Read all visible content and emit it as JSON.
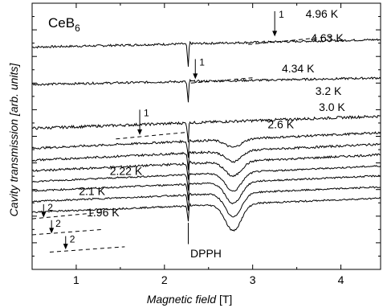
{
  "chart_data": {
    "type": "line",
    "title": "CeB",
    "title_subscript": "6",
    "xlabel_main": "Magnetic field",
    "xlabel_unit": "[T]",
    "ylabel_main": "Cavity transmission",
    "ylabel_unit": "[arb. units]",
    "xlim": [
      0.5,
      4.45
    ],
    "ylim": [
      0,
      1
    ],
    "x_ticks": [
      1,
      2,
      3,
      4
    ],
    "x_tick_labels": [
      "1",
      "2",
      "3",
      "4"
    ],
    "y_ticks_visible_labels": false,
    "grid": false,
    "legend": "none",
    "dpph_position": 2.27,
    "dpph_label": "DPPH",
    "series": [
      {
        "name": "4.96 K",
        "label_x": 3.6,
        "label_y": 0.945,
        "base": 0.835,
        "slope": 0.028,
        "dip1": 0.07,
        "dip2": 0.0,
        "noise": 0.004
      },
      {
        "name": "4.63 K",
        "label_x": 3.66,
        "label_y": 0.855,
        "base": 0.695,
        "slope": 0.024,
        "dip1": 0.06,
        "dip2": 0.0,
        "noise": 0.004
      },
      {
        "name": "4.34 K",
        "label_x": 3.33,
        "label_y": 0.74,
        "base": 0.53,
        "slope": 0.045,
        "dip1": 0.05,
        "dip2": 0.0,
        "noise": 0.005
      },
      {
        "name": "3.2 K",
        "label_x": 3.71,
        "label_y": 0.655,
        "base": 0.455,
        "slope": 0.058,
        "dip1": 0.04,
        "dip2": 0.03,
        "noise": 0.004
      },
      {
        "name": "3.0 K",
        "label_x": 3.75,
        "label_y": 0.595,
        "base": 0.41,
        "slope": 0.06,
        "dip1": 0.04,
        "dip2": 0.04,
        "noise": 0.004
      },
      {
        "name": "2.6 K",
        "label_x": 3.17,
        "label_y": 0.53,
        "base": 0.37,
        "slope": 0.06,
        "dip1": 0.04,
        "dip2": 0.055,
        "noise": 0.004
      },
      {
        "name": "",
        "label_x": 0,
        "label_y": 0,
        "base": 0.33,
        "slope": 0.058,
        "dip1": 0.04,
        "dip2": 0.07,
        "noise": 0.003
      },
      {
        "name": "2.22 K",
        "label_x": 1.38,
        "label_y": 0.355,
        "base": 0.295,
        "slope": 0.056,
        "dip1": 0.04,
        "dip2": 0.08,
        "noise": 0.003
      },
      {
        "name": "2.1 K",
        "label_x": 1.03,
        "label_y": 0.28,
        "base": 0.255,
        "slope": 0.054,
        "dip1": 0.04,
        "dip2": 0.09,
        "noise": 0.003
      },
      {
        "name": "1.96 K",
        "label_x": 1.12,
        "label_y": 0.2,
        "base": 0.215,
        "slope": 0.052,
        "dip1": 0.04,
        "dip2": 0.1,
        "noise": 0.003
      }
    ],
    "markers": [
      {
        "label": "1",
        "x": 3.25,
        "y_arrow_top": 0.97,
        "y_arrow_tip": 0.875,
        "dash_from": 2.95,
        "dash_to": 3.9,
        "dash_y_from": 0.845,
        "dash_y_to": 0.875
      },
      {
        "label": "1",
        "x": 2.35,
        "y_arrow_top": 0.79,
        "y_arrow_tip": 0.715,
        "dash_from": 2.3,
        "dash_to": 3.0,
        "dash_y_from": 0.7,
        "dash_y_to": 0.72
      },
      {
        "label": "1",
        "x": 1.72,
        "y_arrow_top": 0.6,
        "y_arrow_tip": 0.505,
        "dash_from": 1.45,
        "dash_to": 2.25,
        "dash_y_from": 0.49,
        "dash_y_to": 0.515
      },
      {
        "label": "2",
        "x": 0.63,
        "y_arrow_top": 0.245,
        "y_arrow_tip": 0.195,
        "dash_from": 0.5,
        "dash_to": 1.3,
        "dash_y_from": 0.19,
        "dash_y_to": 0.215
      },
      {
        "label": "2",
        "x": 0.72,
        "y_arrow_top": 0.185,
        "y_arrow_tip": 0.135,
        "dash_from": 0.5,
        "dash_to": 1.3,
        "dash_y_from": 0.13,
        "dash_y_to": 0.15
      },
      {
        "label": "2",
        "x": 0.88,
        "y_arrow_top": 0.125,
        "y_arrow_tip": 0.075,
        "dash_from": 0.7,
        "dash_to": 1.55,
        "dash_y_from": 0.065,
        "dash_y_to": 0.085
      }
    ]
  }
}
